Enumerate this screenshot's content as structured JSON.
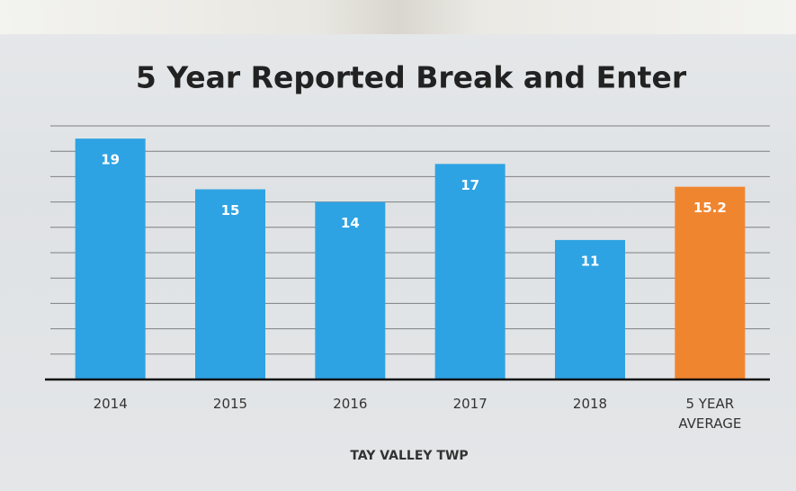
{
  "chart_data": {
    "type": "bar",
    "title": "5 Year Reported Break and Enter",
    "categories": [
      "2014",
      "2015",
      "2016",
      "2017",
      "2018",
      "5 YEAR AVERAGE"
    ],
    "values": [
      19,
      15,
      14,
      17,
      11,
      15.2
    ],
    "colors": [
      "#2ea3e3",
      "#2ea3e3",
      "#2ea3e3",
      "#2ea3e3",
      "#2ea3e3",
      "#f0852f"
    ],
    "x_label": "TAY VALLEY TWP",
    "ylim": [
      0,
      20
    ],
    "yticks": [
      0,
      2,
      4,
      6,
      8,
      10,
      12,
      14,
      16,
      18,
      20
    ],
    "show_tick_labels": false,
    "grid": true
  }
}
